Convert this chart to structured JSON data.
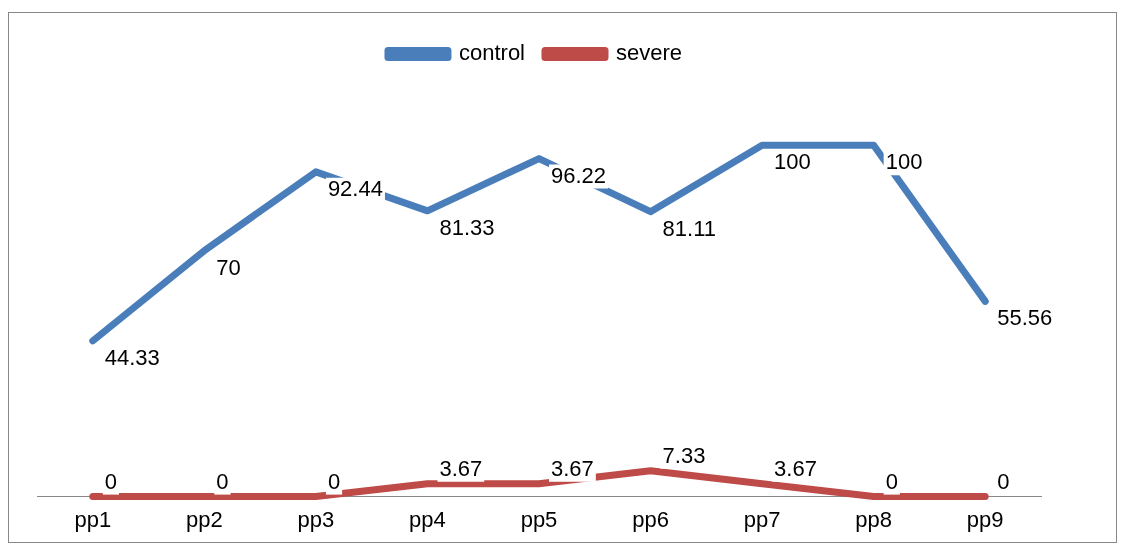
{
  "chart_data": {
    "type": "line",
    "relative": false,
    "categories": [
      "pp1",
      "pp2",
      "pp3",
      "pp4",
      "pp5",
      "pp6",
      "pp7",
      "pp8",
      "pp9"
    ],
    "series": [
      {
        "name": "control",
        "color": "#4a7ebb",
        "values": [
          44.33,
          70,
          92.44,
          81.33,
          96.22,
          81.11,
          100,
          100,
          55.56
        ]
      },
      {
        "name": "severe",
        "color": "#be4b48",
        "values": [
          0,
          0,
          0,
          3.67,
          3.67,
          7.33,
          3.67,
          0,
          0
        ]
      }
    ],
    "data_labels": true,
    "legend": "top",
    "grid": false,
    "marker": "none",
    "line_style": "solid"
  }
}
